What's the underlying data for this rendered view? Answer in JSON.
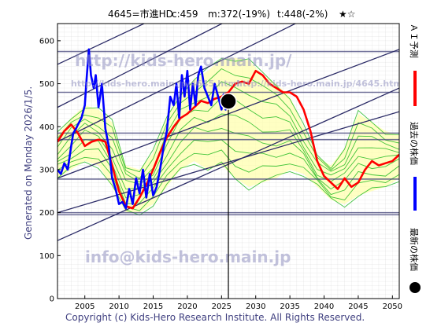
{
  "header": {
    "title": "4645=市進HD",
    "current": "c:459",
    "median": "m:372(-19%)",
    "target": "t:448(-2%)",
    "rating": "★☆"
  },
  "side_label": "Generated on Monday 2026/1/5.",
  "footer": "Copyright (c) Kids-Hero Research Institute. All Rights Reserved.",
  "watermarks": {
    "url_large": "http://kids-hero.main.jp/",
    "url_small": "http://kids-hero.main.jp/4645.html",
    "email": "info@kids-hero.main.jp"
  },
  "legend": [
    {
      "label": "ＡＩ予測",
      "color": "#ff0000"
    },
    {
      "label": "過去の株価",
      "color": "#0000ff"
    },
    {
      "label": "最新の株価",
      "color": "#000000"
    }
  ],
  "chart_data": {
    "type": "line",
    "title": "4645=市進HD",
    "xlim": [
      2001,
      2051
    ],
    "ylim": [
      0,
      640
    ],
    "x_ticks": [
      2005,
      2010,
      2015,
      2020,
      2025,
      2030,
      2035,
      2040,
      2045,
      2050
    ],
    "y_ticks": [
      0,
      100,
      200,
      300,
      400,
      500,
      600
    ],
    "grid": true,
    "horizontal_levels": [
      195,
      200,
      278,
      370,
      385,
      480,
      575
    ],
    "current_point": {
      "x": 2026.0,
      "y": 459
    },
    "colors": {
      "past_price": "#0000ff",
      "ai_forecast": "#ff0000",
      "forecast_band": "#22bb22",
      "forecast_fill": "#ffffaa",
      "trend_lines": "#2a2a66",
      "levels": "#44447a",
      "grid": "#c8c8c8"
    },
    "series": [
      {
        "name": "過去の株価",
        "x": [
          2001.0,
          2001.5,
          2002.0,
          2002.5,
          2003.0,
          2003.3,
          2003.7,
          2004.0,
          2004.5,
          2005.0,
          2005.3,
          2005.6,
          2005.9,
          2006.3,
          2006.6,
          2007.0,
          2007.5,
          2008.0,
          2008.5,
          2009.0,
          2009.5,
          2010.0,
          2010.5,
          2011.0,
          2011.5,
          2012.0,
          2012.5,
          2013.0,
          2013.5,
          2014.0,
          2014.5,
          2015.0,
          2015.5,
          2016.0,
          2016.5,
          2017.0,
          2017.5,
          2018.0,
          2018.4,
          2018.8,
          2019.2,
          2019.6,
          2020.0,
          2020.4,
          2020.8,
          2021.2,
          2021.6,
          2022.0,
          2022.5,
          2023.0,
          2023.5,
          2024.0,
          2024.5,
          2025.0,
          2025.3,
          2025.6,
          2026.0
        ],
        "y": [
          300,
          290,
          315,
          300,
          355,
          385,
          395,
          405,
          420,
          450,
          520,
          580,
          520,
          490,
          520,
          445,
          500,
          395,
          355,
          280,
          255,
          220,
          225,
          210,
          255,
          220,
          280,
          245,
          300,
          235,
          290,
          240,
          260,
          300,
          350,
          390,
          470,
          450,
          500,
          420,
          520,
          470,
          530,
          440,
          500,
          450,
          520,
          540,
          490,
          470,
          450,
          500,
          470,
          440,
          475,
          440,
          459
        ]
      },
      {
        "name": "ＡＩ予測",
        "x": [
          2001,
          2002,
          2003,
          2004,
          2005,
          2006,
          2007,
          2008,
          2009,
          2010,
          2011,
          2012,
          2013,
          2014,
          2015,
          2016,
          2017,
          2018,
          2019,
          2020,
          2021,
          2022,
          2023,
          2024,
          2025,
          2026,
          2027,
          2028,
          2029,
          2030,
          2031,
          2032,
          2033,
          2034,
          2035,
          2036,
          2037,
          2038,
          2039,
          2040,
          2041,
          2042,
          2043,
          2044,
          2045,
          2046,
          2047,
          2048,
          2049,
          2050,
          2051
        ],
        "y": [
          365,
          390,
          405,
          385,
          355,
          365,
          370,
          365,
          310,
          250,
          215,
          210,
          235,
          265,
          300,
          340,
          375,
          400,
          420,
          430,
          445,
          460,
          455,
          465,
          470,
          480,
          500,
          505,
          500,
          530,
          520,
          500,
          490,
          480,
          480,
          470,
          440,
          390,
          320,
          285,
          270,
          255,
          280,
          260,
          270,
          300,
          320,
          310,
          315,
          320,
          335
        ]
      }
    ],
    "forecast_band": {
      "x": [
        2001,
        2003,
        2005,
        2007,
        2009,
        2011,
        2013,
        2015,
        2017,
        2019,
        2021,
        2023,
        2025,
        2027,
        2029,
        2031,
        2033,
        2035,
        2037,
        2039,
        2041,
        2043,
        2045,
        2047,
        2049,
        2051
      ],
      "upper": [
        380,
        420,
        450,
        440,
        410,
        310,
        300,
        340,
        420,
        480,
        510,
        530,
        560,
        560,
        555,
        520,
        500,
        470,
        400,
        330,
        310,
        350,
        430,
        410,
        390,
        380
      ],
      "lower": [
        280,
        300,
        320,
        310,
        260,
        200,
        200,
        220,
        260,
        300,
        320,
        300,
        310,
        280,
        260,
        270,
        280,
        300,
        290,
        260,
        230,
        220,
        240,
        250,
        260,
        280
      ]
    },
    "trend_lines": [
      {
        "x": [
          2001,
          2051
        ],
        "y": [
          135,
          490
        ]
      },
      {
        "x": [
          2001,
          2051
        ],
        "y": [
          200,
          435
        ]
      },
      {
        "x": [
          2001,
          2051
        ],
        "y": [
          280,
          580
        ]
      },
      {
        "x": [
          2001,
          2051
        ],
        "y": [
          365,
          760
        ]
      },
      {
        "x": [
          2001,
          2051
        ],
        "y": [
          445,
          850
        ]
      },
      {
        "x": [
          2001,
          2051
        ],
        "y": [
          545,
          920
        ]
      }
    ]
  }
}
